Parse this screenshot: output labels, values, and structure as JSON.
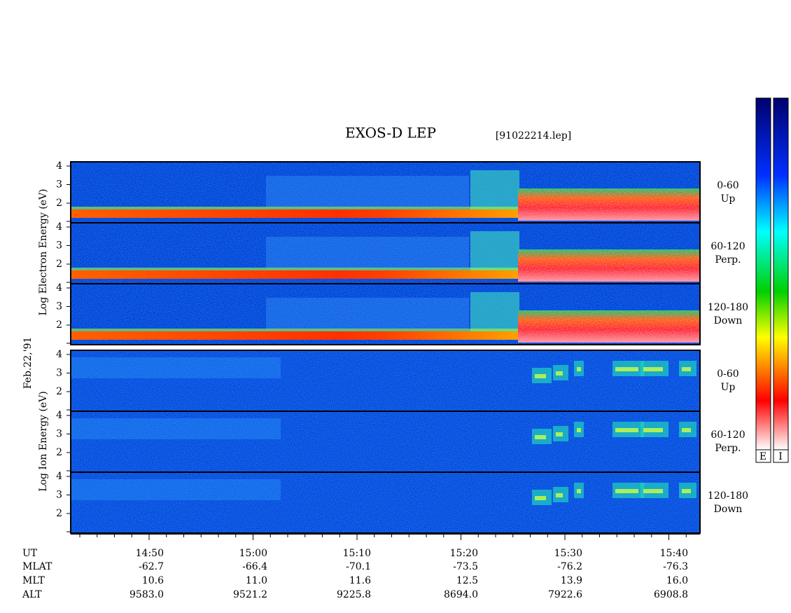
{
  "title": "EXOS-D LEP",
  "file": "[91022214.lep]",
  "date": "Feb.22,'91",
  "electron_axis_label": "Log  Electron  Energy (eV)",
  "ion_axis_label": "Log  Ion  Energy (eV)",
  "energy_ticks": [
    "4",
    "3",
    "2"
  ],
  "panels": [
    {
      "species": "electron",
      "pitch": "0-60",
      "direction": "Up"
    },
    {
      "species": "electron",
      "pitch": "60-120",
      "direction": "Perp."
    },
    {
      "species": "electron",
      "pitch": "120-180",
      "direction": "Down"
    },
    {
      "species": "ion",
      "pitch": "0-60",
      "direction": "Up"
    },
    {
      "species": "ion",
      "pitch": "60-120",
      "direction": "Perp."
    },
    {
      "species": "ion",
      "pitch": "120-180",
      "direction": "Down"
    }
  ],
  "ephemeris": [
    [
      "UT",
      "14:50",
      "15:00",
      "15:10",
      "15:20",
      "15:30",
      "15:40"
    ],
    [
      "MLAT",
      "-62.7",
      "-66.4",
      "-70.1",
      "-73.5",
      "-76.2",
      "-76.3"
    ],
    [
      "MLT",
      "10.6",
      "11.0",
      "11.6",
      "12.5",
      "13.9",
      "16.0"
    ],
    [
      "ALT",
      "9583.0",
      "9521.2",
      "9225.8",
      "8694.0",
      "7922.6",
      "6908.8"
    ]
  ],
  "colorbar_labels": [
    "E",
    "I"
  ]
}
